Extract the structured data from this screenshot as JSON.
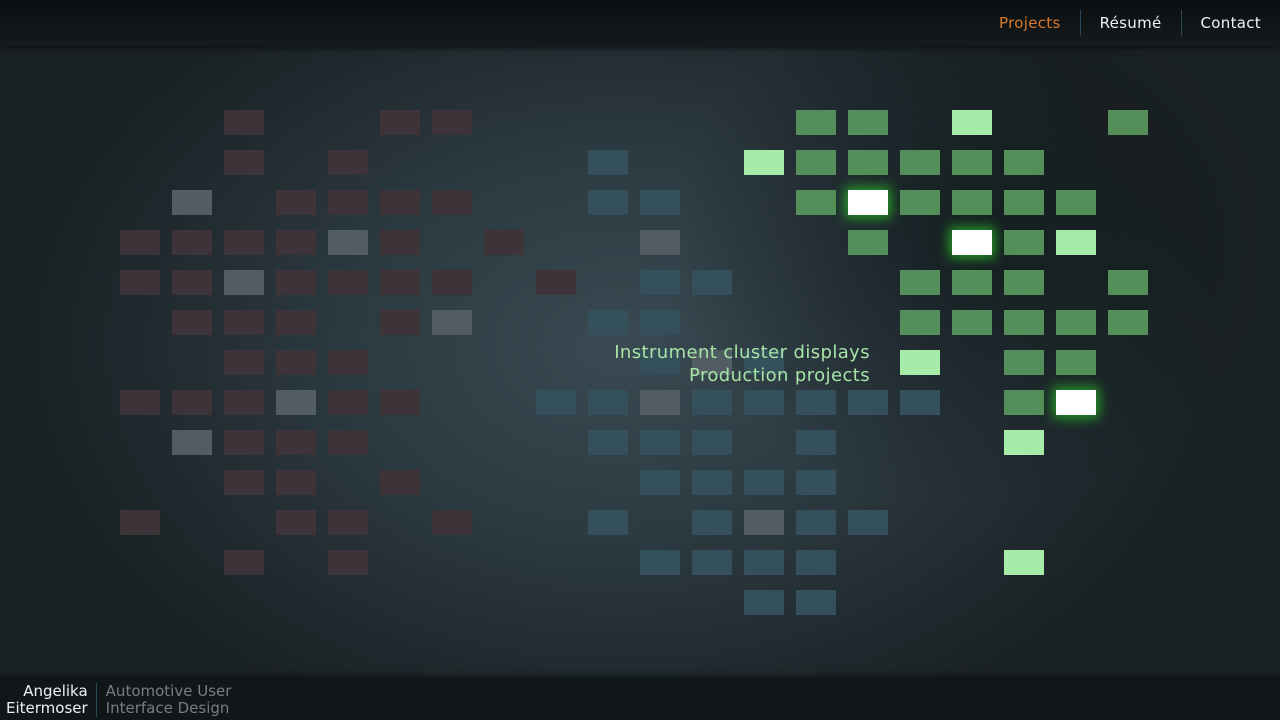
{
  "nav": {
    "items": [
      {
        "label": "Projects",
        "active": true
      },
      {
        "label": "Résumé",
        "active": false
      },
      {
        "label": "Contact",
        "active": false
      }
    ],
    "active_color": "#d9782a"
  },
  "caption": {
    "line1": "Instrument cluster displays",
    "line2": "Production projects"
  },
  "footer": {
    "name_first": "Angelika",
    "name_last": "Eitermoser",
    "tagline_1": "Automotive User",
    "tagline_2": "Interface Design"
  },
  "grid": {
    "legend": {
      "r": "red-dim",
      "s": "gray-highlight",
      "b": "blue-dim",
      "G": "green",
      "L": "light-green",
      "W": "white-active"
    },
    "colors": {
      "r": "#3d3338",
      "s": "#515d63",
      "b": "#34505b",
      "G": "#548e59",
      "L": "#a6eba8",
      "W": "#ffffff"
    },
    "rows": [
      "..r..rr......GG.L..G",
      "..r.r....b..LGGGGG..",
      ".s.rrrr..bb..GWGGGG.",
      "rrrrsr.r..s...G.WGL.",
      "rrsrrrr.r.bb...GGG.G",
      ".rrr.rs..bb....GGGGG",
      "..rrr.....bsb..L.GG.",
      "rrrsrr..bbsbbbbb.GW.",
      ".srrr....bbb.b...L..",
      "..rr.r....bbbb......",
      "r..rr.r..b.bsbb.....",
      "..r.r.....bbbb...L..",
      "............bb......"
    ]
  }
}
